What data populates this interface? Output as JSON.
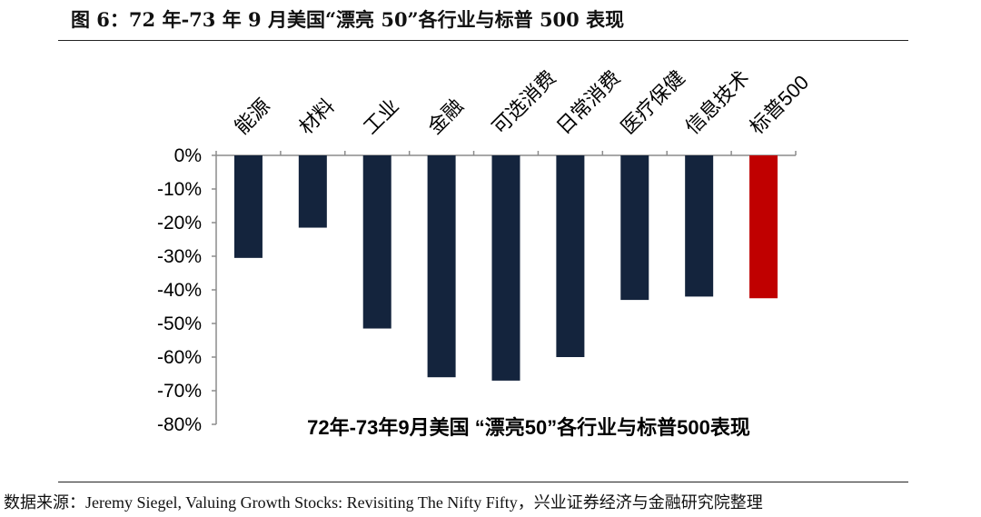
{
  "figure_title": "图 6：72 年-73 年 9 月美国“漂亮 50”各行业与标普 500 表现",
  "source": "数据来源：Jeremy Siegel, Valuing Growth Stocks: Revisiting The Nifty Fifty，兴业证券经济与金融研究院整理",
  "colors": {
    "bar": "#14243D",
    "highlight": "#C00000",
    "axis": "#8C8C8C"
  },
  "chart_data": {
    "type": "bar",
    "title": "72年-73年9月美国 “漂亮50”各行业与标普500表现",
    "categories": [
      "能源",
      "材料",
      "工业",
      "金融",
      "可选消费",
      "日常消费",
      "医疗保健",
      "信息技术",
      "标普500"
    ],
    "values": [
      -30.5,
      -21.5,
      -51.5,
      -66.0,
      -67.0,
      -60.0,
      -43.0,
      -42.0,
      -42.5
    ],
    "highlight": [
      "标普500"
    ],
    "xlabel": "",
    "ylabel": "",
    "ylim": [
      -80,
      0
    ],
    "yticks": [
      "0%",
      "-10%",
      "-20%",
      "-30%",
      "-40%",
      "-50%",
      "-60%",
      "-70%",
      "-80%"
    ],
    "grid": false,
    "legend": "none"
  }
}
